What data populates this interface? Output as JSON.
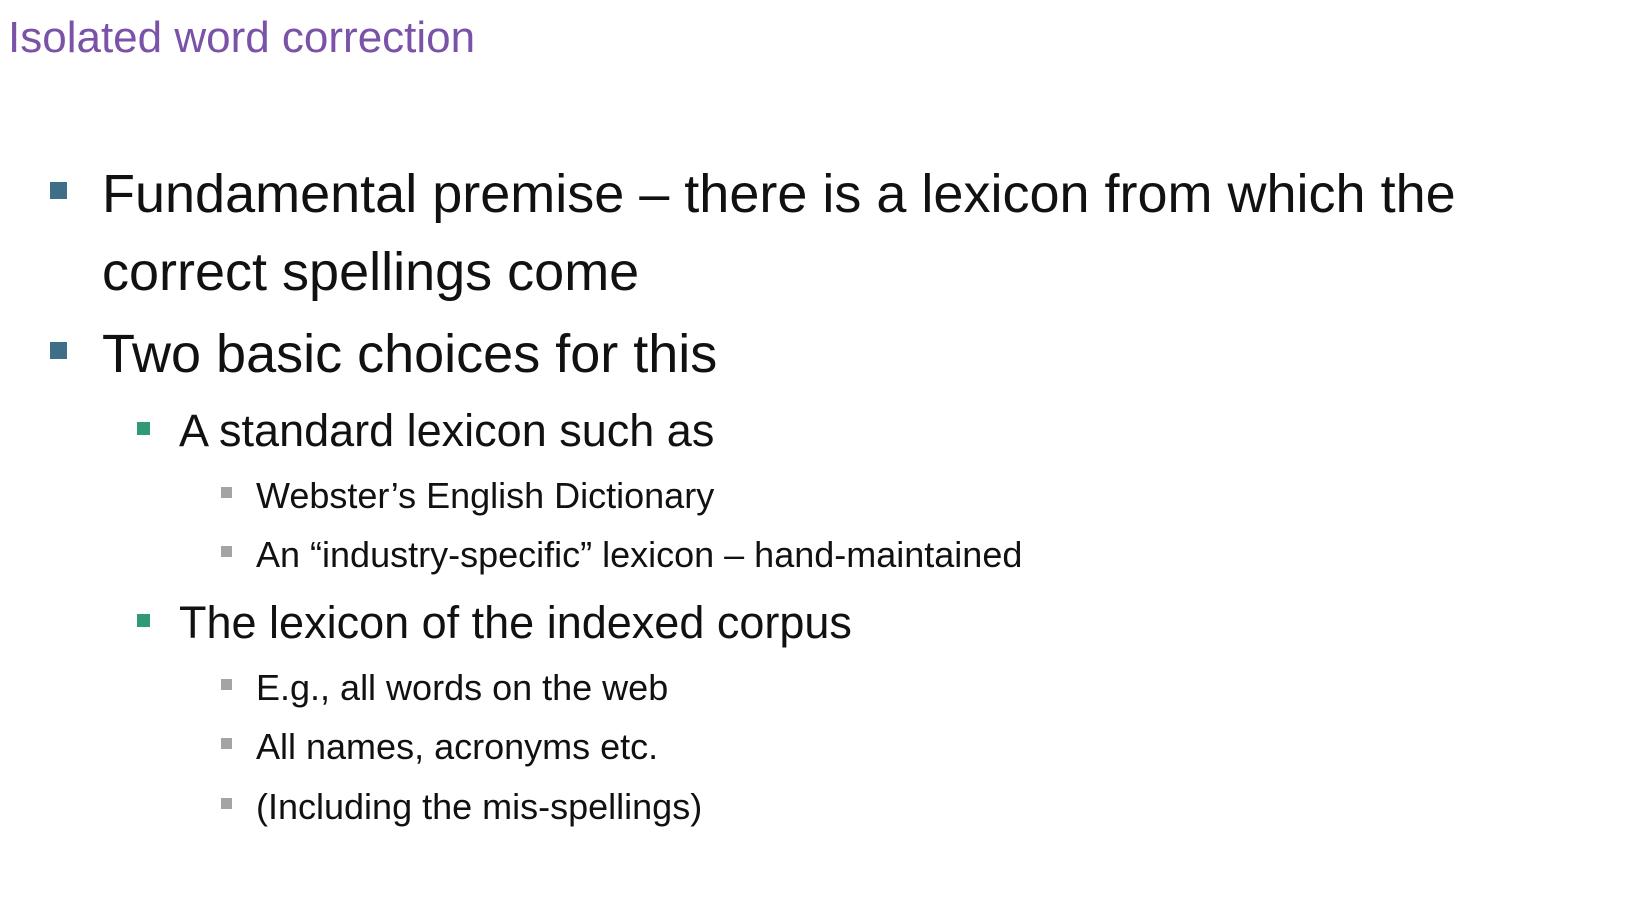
{
  "slide": {
    "title": "Isolated word correction",
    "bullets": [
      {
        "line1": "Fundamental premise – there is a lexicon from which the",
        "line2": "correct spellings come"
      },
      {
        "text": "Two basic choices for this",
        "children": [
          {
            "text": "A standard lexicon such as",
            "children": [
              "Webster’s English Dictionary",
              "An “industry-specific” lexicon – hand-maintained"
            ]
          },
          {
            "text": "The lexicon of the indexed corpus",
            "children": [
              "E.g., all words on the web",
              "All names, acronyms etc.",
              "(Including the mis-spellings)"
            ]
          }
        ]
      }
    ]
  },
  "colors": {
    "title": "#7a52a8",
    "level1_bullet": "#3f6f87",
    "level2_bullet": "#2f9a73",
    "level3_bullet": "#a4a4a4"
  }
}
